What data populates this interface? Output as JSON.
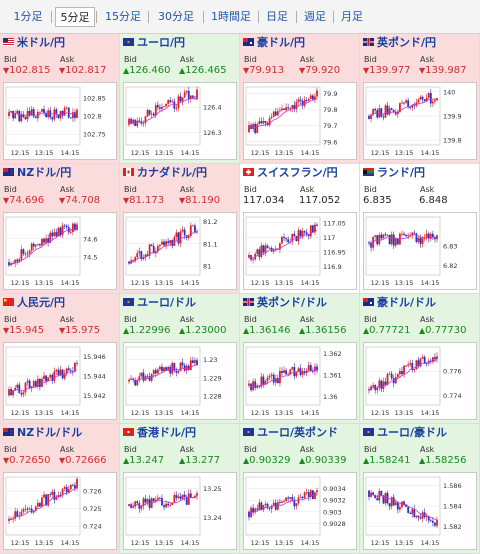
{
  "tabs": [
    {
      "label": "1分足",
      "active": false
    },
    {
      "label": "5分足",
      "active": true
    },
    {
      "label": "15分足",
      "active": false
    },
    {
      "label": "30分足",
      "active": false
    },
    {
      "label": "1時間足",
      "active": false
    },
    {
      "label": "日足",
      "active": false
    },
    {
      "label": "週足",
      "active": false
    },
    {
      "label": "月足",
      "active": false
    }
  ],
  "labels": {
    "bid": "Bid",
    "ask": "Ask"
  },
  "colors": {
    "up_bg": "#e3f5e1",
    "down_bg": "#fbdcdc",
    "up_text": "#1a8a1a",
    "down_text": "#d03030",
    "ma": "#cc33cc",
    "candle_up": "#dd2222",
    "candle_down": "#2233cc"
  },
  "pairs": [
    {
      "name": "米ドル/円",
      "flag": "us-flag",
      "trend": "down",
      "bid": "102.815",
      "ask": "102.817",
      "chart": {
        "x_labels": [
          "12:15",
          "13:15",
          "14:15"
        ],
        "y_ticks": [
          "102.85",
          "102.8",
          "102.75"
        ],
        "y_min": 102.72,
        "y_max": 102.88,
        "start": 102.8,
        "end": 102.81,
        "low": 102.74,
        "high": 102.86
      }
    },
    {
      "name": "ユーロ/円",
      "flag": "eu-flag",
      "trend": "up",
      "bid": "126.460",
      "ask": "126.465",
      "chart": {
        "x_labels": [
          "12:15",
          "13:15",
          "14:15"
        ],
        "y_ticks": [
          "126.4",
          "126.3"
        ],
        "y_min": 126.25,
        "y_max": 126.48,
        "start": 126.33,
        "end": 126.46,
        "low": 126.28,
        "high": 126.47
      }
    },
    {
      "name": "豪ドル/円",
      "flag": "au-flag",
      "trend": "down",
      "bid": "79.913",
      "ask": "79.920",
      "chart": {
        "x_labels": [
          "12:15",
          "13:15",
          "14:15"
        ],
        "y_ticks": [
          "79.9",
          "79.8",
          "79.7",
          "79.6"
        ],
        "y_min": 79.58,
        "y_max": 79.94,
        "start": 79.66,
        "end": 79.91,
        "low": 79.6,
        "high": 79.93
      }
    },
    {
      "name": "英ポンド/円",
      "flag": "uk-flag",
      "trend": "down",
      "bid": "139.977",
      "ask": "139.987",
      "chart": {
        "x_labels": [
          "12:15",
          "13:15",
          "14:15"
        ],
        "y_ticks": [
          "140",
          "139.9",
          "139.8"
        ],
        "y_min": 139.78,
        "y_max": 140.02,
        "start": 139.9,
        "end": 139.98,
        "low": 139.82,
        "high": 140.0
      }
    },
    {
      "name": "NZドル/円",
      "flag": "nz-flag",
      "trend": "down",
      "bid": "74.696",
      "ask": "74.708",
      "chart": {
        "x_labels": [
          "12:15",
          "13:15",
          "14:15"
        ],
        "y_ticks": [
          "74.6",
          "74.5"
        ],
        "y_min": 74.4,
        "y_max": 74.72,
        "start": 74.47,
        "end": 74.69,
        "low": 74.43,
        "high": 74.71
      }
    },
    {
      "name": "カナダドル/円",
      "flag": "ca-flag",
      "trend": "down",
      "bid": "81.173",
      "ask": "81.190",
      "chart": {
        "x_labels": [
          "12:15",
          "13:15",
          "14:15"
        ],
        "y_ticks": [
          "81.2",
          "81.1",
          "81"
        ],
        "y_min": 80.96,
        "y_max": 81.22,
        "start": 81.02,
        "end": 81.17,
        "low": 80.99,
        "high": 81.2
      }
    },
    {
      "name": "スイスフラン/円",
      "flag": "ch-flag",
      "trend": "flat",
      "bid": "117.034",
      "ask": "117.052",
      "chart": {
        "x_labels": [
          "12:15",
          "13:15",
          "14:15"
        ],
        "y_ticks": [
          "117.05",
          "117",
          "116.95",
          "116.9"
        ],
        "y_min": 116.87,
        "y_max": 117.07,
        "start": 116.93,
        "end": 117.03,
        "low": 116.89,
        "high": 117.06
      }
    },
    {
      "name": "ランド/円",
      "flag": "za-flag",
      "trend": "flat",
      "bid": "6.835",
      "ask": "6.848",
      "chart": {
        "x_labels": [
          "12:15",
          "13:15",
          "14:15"
        ],
        "y_ticks": [
          "6.83",
          "6.82"
        ],
        "y_min": 6.815,
        "y_max": 6.845,
        "start": 6.832,
        "end": 6.835,
        "low": 6.818,
        "high": 6.842
      }
    },
    {
      "name": "人民元/円",
      "flag": "cn-flag",
      "trend": "down",
      "bid": "15.945",
      "ask": "15.975",
      "chart": {
        "x_labels": [
          "12:15",
          "13:15",
          "14:15"
        ],
        "y_ticks": [
          "15.946",
          "15.944",
          "15.942"
        ],
        "y_min": 15.941,
        "y_max": 15.947,
        "start": 15.942,
        "end": 15.945,
        "low": 15.9415,
        "high": 15.9468
      }
    },
    {
      "name": "ユーロ/ドル",
      "flag": "eu-flag",
      "trend": "up",
      "bid": "1.22996",
      "ask": "1.23000",
      "chart": {
        "x_labels": [
          "12:15",
          "13:15",
          "14:15"
        ],
        "y_ticks": [
          "1.23",
          "1.229",
          "1.228"
        ],
        "y_min": 1.2275,
        "y_max": 1.2307,
        "start": 1.2288,
        "end": 1.2299,
        "low": 1.2279,
        "high": 1.2304
      }
    },
    {
      "name": "英ポンド/ドル",
      "flag": "uk-flag",
      "trend": "up",
      "bid": "1.36146",
      "ask": "1.36156",
      "chart": {
        "x_labels": [
          "12:15",
          "13:15",
          "14:15"
        ],
        "y_ticks": [
          "1.362",
          "1.361",
          "1.36"
        ],
        "y_min": 1.3596,
        "y_max": 1.3623,
        "start": 1.3605,
        "end": 1.3614,
        "low": 1.3599,
        "high": 1.3621
      }
    },
    {
      "name": "豪ドル/ドル",
      "flag": "au-flag",
      "trend": "up",
      "bid": "0.77721",
      "ask": "0.77730",
      "chart": {
        "x_labels": [
          "12:15",
          "13:15",
          "14:15"
        ],
        "y_ticks": [
          "0.776",
          "0.774"
        ],
        "y_min": 0.7732,
        "y_max": 0.778,
        "start": 0.7745,
        "end": 0.7772,
        "low": 0.7735,
        "high": 0.7778
      }
    },
    {
      "name": "NZドル/ドル",
      "flag": "nz-flag",
      "trend": "down",
      "bid": "0.72650",
      "ask": "0.72666",
      "chart": {
        "x_labels": [
          "12:15",
          "13:15",
          "14:15"
        ],
        "y_ticks": [
          "0.726",
          "0.725",
          "0.724"
        ],
        "y_min": 0.7235,
        "y_max": 0.7268,
        "start": 0.7243,
        "end": 0.7265,
        "low": 0.7238,
        "high": 0.7267
      }
    },
    {
      "name": "香港ドル/円",
      "flag": "hk-flag",
      "trend": "up",
      "bid": "13.247",
      "ask": "13.277",
      "chart": {
        "x_labels": [
          "12:15",
          "13:15",
          "14:15"
        ],
        "y_ticks": [
          "13.25",
          "13.24"
        ],
        "y_min": 13.234,
        "y_max": 13.254,
        "start": 13.244,
        "end": 13.247,
        "low": 13.236,
        "high": 13.252
      }
    },
    {
      "name": "ユーロ/英ポンド",
      "flag": "eu-flag",
      "trend": "up",
      "bid": "0.90329",
      "ask": "0.90339",
      "chart": {
        "x_labels": [
          "12:15",
          "13:15",
          "14:15"
        ],
        "y_ticks": [
          "0.9034",
          "0.9032",
          "0.903",
          "0.9028"
        ],
        "y_min": 0.9026,
        "y_max": 0.9036,
        "start": 0.903,
        "end": 0.9033,
        "low": 0.9027,
        "high": 0.9035
      }
    },
    {
      "name": "ユーロ/豪ドル",
      "flag": "eu-flag",
      "trend": "up",
      "bid": "1.58241",
      "ask": "1.58256",
      "chart": {
        "x_labels": [
          "12:15",
          "13:15",
          "14:15"
        ],
        "y_ticks": [
          "1.586",
          "1.584",
          "1.582"
        ],
        "y_min": 1.5812,
        "y_max": 1.5868,
        "start": 1.5855,
        "end": 1.5824,
        "low": 1.5815,
        "high": 1.5864
      }
    }
  ]
}
